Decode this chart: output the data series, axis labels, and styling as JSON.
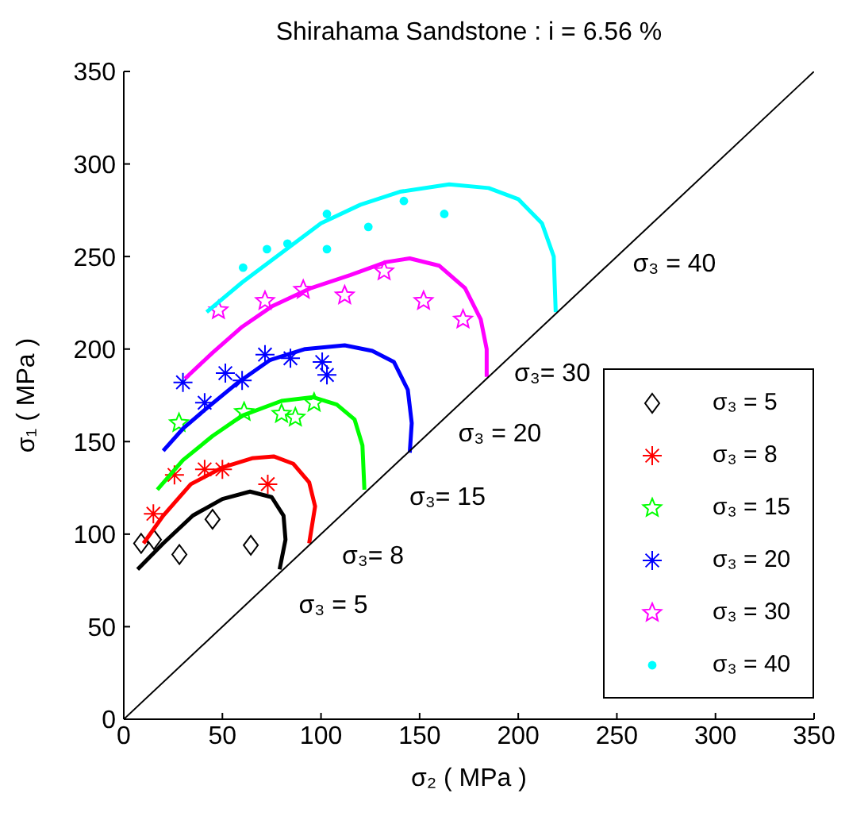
{
  "chart_data": {
    "type": "scatter",
    "title": "Shirahama Sandstone : i = 6.56  %",
    "xlabel": "σ₂ ( MPa )",
    "ylabel": "σ₁ ( MPa )",
    "xlim": [
      0,
      350
    ],
    "ylim": [
      0,
      350
    ],
    "xticks": [
      0,
      50,
      100,
      150,
      200,
      250,
      300,
      350
    ],
    "yticks": [
      0,
      50,
      100,
      150,
      200,
      250,
      300,
      350
    ],
    "grid": false,
    "legend": "bottom right",
    "series": [
      {
        "name": "σ₃ = 5",
        "color": "#000000",
        "marker": "diamond",
        "x": [
          8.8,
          15.3,
          28.2,
          45,
          64.4
        ],
        "values": [
          95,
          97,
          89,
          108,
          94
        ]
      },
      {
        "name": "σ₃ = 8",
        "color": "#ff0000",
        "marker": "cross",
        "x": [
          15,
          25.7,
          41,
          50,
          73
        ],
        "values": [
          111,
          132,
          135,
          135,
          127
        ]
      },
      {
        "name": "σ₃ = 15",
        "color": "#00ff00",
        "marker": "star",
        "x": [
          28,
          61,
          80,
          87,
          96.5
        ],
        "values": [
          160,
          166,
          165,
          163,
          171
        ]
      },
      {
        "name": "σ₃ = 20",
        "color": "#0000ff",
        "marker": "cross",
        "x": [
          30,
          41,
          51.5,
          60,
          71.6,
          84.5,
          100.6,
          103
        ],
        "values": [
          182,
          171,
          187,
          183,
          197,
          195,
          193,
          186
        ]
      },
      {
        "name": "σ₃ = 30",
        "color": "#ff00ff",
        "marker": "star",
        "x": [
          48,
          71.6,
          91,
          112,
          132,
          152,
          172
        ],
        "values": [
          221,
          226,
          232,
          229,
          242,
          226,
          216
        ]
      },
      {
        "name": "σ₃ = 40",
        "color": "#00ffff",
        "marker": "circle",
        "x": [
          60.5,
          72.6,
          83,
          103,
          103,
          124,
          142,
          162.5
        ],
        "values": [
          244,
          254,
          257,
          254,
          273,
          266,
          280,
          273
        ]
      },
      {
        "type": "line",
        "color": "#000000",
        "x": [
          7,
          20,
          35,
          50,
          64,
          75,
          81,
          82,
          79
        ],
        "values": [
          81,
          95,
          110,
          119,
          123,
          120,
          110,
          97,
          81
        ]
      },
      {
        "type": "line",
        "color": "#ff0000",
        "x": [
          10,
          20,
          34,
          50,
          65,
          76,
          86,
          94,
          97,
          94
        ],
        "values": [
          95,
          110,
          127,
          136,
          141,
          142,
          138,
          128,
          115,
          95
        ]
      },
      {
        "type": "line",
        "color": "#00ff00",
        "x": [
          17,
          30,
          45,
          60,
          80,
          96,
          108,
          117,
          121,
          122
        ],
        "values": [
          124,
          140,
          153,
          164,
          172,
          174,
          170,
          162,
          148,
          124
        ]
      },
      {
        "type": "line",
        "color": "#0000ff",
        "x": [
          20,
          30,
          42,
          58,
          74,
          92,
          112,
          126,
          137,
          144,
          146,
          145
        ],
        "values": [
          145,
          157,
          168,
          182,
          194,
          200,
          202,
          199,
          193,
          178,
          160,
          144
        ]
      },
      {
        "type": "line",
        "color": "#ff00ff",
        "x": [
          31,
          45,
          60,
          75,
          95,
          115,
          133,
          145,
          160,
          173,
          181,
          184,
          184
        ],
        "values": [
          184,
          198,
          212,
          223,
          233,
          240,
          247,
          249,
          245,
          233,
          216,
          200,
          185
        ]
      },
      {
        "type": "line",
        "color": "#00ffff",
        "x": [
          42,
          60,
          80,
          100,
          120,
          140,
          165,
          185,
          200,
          212,
          218,
          219
        ],
        "values": [
          220,
          236,
          252,
          268,
          278,
          285,
          289,
          287,
          281,
          268,
          250,
          220
        ]
      },
      {
        "type": "line",
        "color": "#000000",
        "x": [
          0,
          350
        ],
        "values": [
          0,
          350
        ]
      }
    ],
    "annotations": [
      "σ₃ = 5",
      "σ₃= 8",
      "σ₃= 15",
      "σ₃ = 20",
      "σ₃= 30",
      "σ₃ = 40"
    ]
  }
}
